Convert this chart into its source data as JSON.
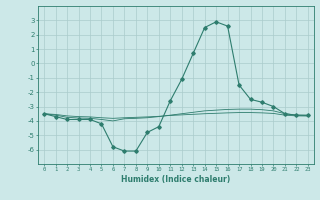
{
  "x": [
    0,
    1,
    2,
    3,
    4,
    5,
    6,
    7,
    8,
    9,
    10,
    11,
    12,
    13,
    14,
    15,
    16,
    17,
    18,
    19,
    20,
    21,
    22,
    23
  ],
  "line1": [
    -3.5,
    -3.7,
    -3.9,
    -3.9,
    -3.9,
    -4.2,
    -5.8,
    -6.1,
    -6.1,
    -4.8,
    -4.4,
    -2.6,
    -1.1,
    0.7,
    2.5,
    2.9,
    2.6,
    -1.5,
    -2.5,
    -2.7,
    -3.0,
    -3.5,
    -3.6,
    -3.6
  ],
  "line2": [
    -3.5,
    -3.6,
    -3.75,
    -3.8,
    -3.82,
    -3.9,
    -4.0,
    -3.85,
    -3.82,
    -3.78,
    -3.7,
    -3.6,
    -3.5,
    -3.4,
    -3.3,
    -3.25,
    -3.2,
    -3.18,
    -3.18,
    -3.22,
    -3.3,
    -3.5,
    -3.6,
    -3.62
  ],
  "line3": [
    -3.5,
    -3.55,
    -3.65,
    -3.7,
    -3.72,
    -3.78,
    -3.82,
    -3.78,
    -3.75,
    -3.72,
    -3.68,
    -3.62,
    -3.58,
    -3.54,
    -3.5,
    -3.47,
    -3.44,
    -3.42,
    -3.42,
    -3.44,
    -3.48,
    -3.6,
    -3.65,
    -3.66
  ],
  "line_color": "#2e7d6e",
  "bg_color": "#cce8e8",
  "grid_color": "#aacccc",
  "xlabel": "Humidex (Indice chaleur)",
  "ylim": [
    -7,
    4
  ],
  "xlim": [
    -0.5,
    23.5
  ],
  "yticks": [
    3,
    2,
    1,
    0,
    -1,
    -2,
    -3,
    -4,
    -5,
    -6
  ],
  "xticks": [
    0,
    1,
    2,
    3,
    4,
    5,
    6,
    7,
    8,
    9,
    10,
    11,
    12,
    13,
    14,
    15,
    16,
    17,
    18,
    19,
    20,
    21,
    22,
    23
  ]
}
